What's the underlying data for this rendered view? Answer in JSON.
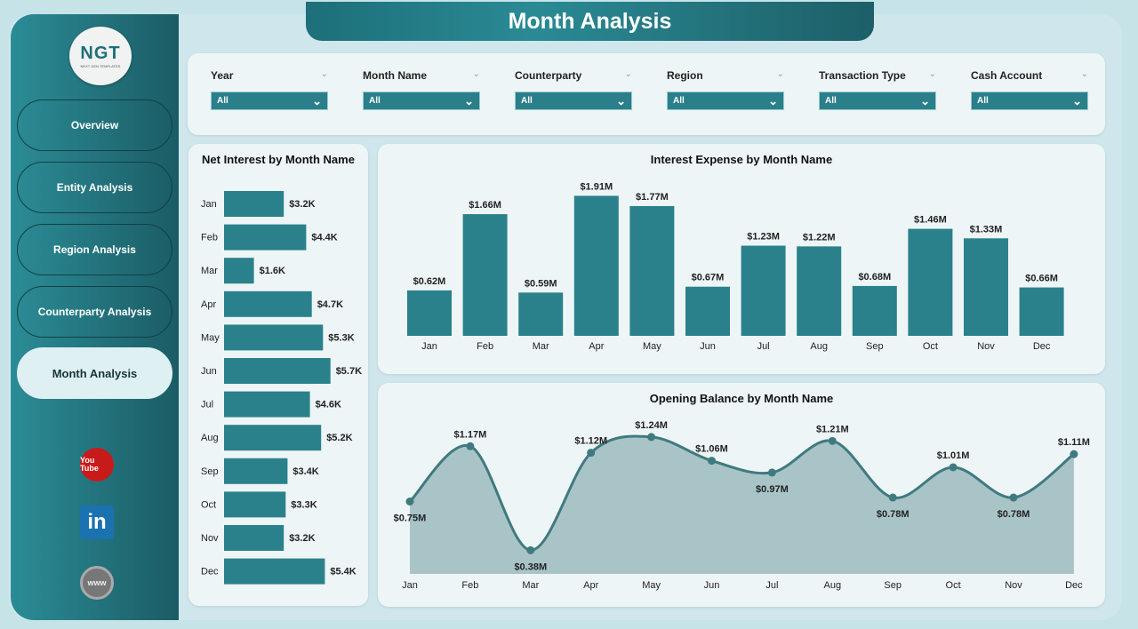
{
  "title": "Month Analysis",
  "logo": {
    "text": "NGT",
    "subtext": "NEXT GEN TEMPLATES"
  },
  "sidebar": {
    "items": [
      {
        "label": "Overview"
      },
      {
        "label": "Entity Analysis"
      },
      {
        "label": "Region Analysis"
      },
      {
        "label": "Counterparty Analysis"
      },
      {
        "label": "Month Analysis",
        "active": true
      }
    ],
    "social": [
      {
        "icon": "youtube-icon",
        "label": "You Tube"
      },
      {
        "icon": "linkedin-icon",
        "label": "in"
      },
      {
        "icon": "website-globe-icon",
        "label": "www"
      }
    ]
  },
  "filters": [
    {
      "label": "Year",
      "value": "All"
    },
    {
      "label": "Month Name",
      "value": "All"
    },
    {
      "label": "Counterparty",
      "value": "All"
    },
    {
      "label": "Region",
      "value": "All"
    },
    {
      "label": "Transaction Type",
      "value": "All"
    },
    {
      "label": "Cash Account",
      "value": "All"
    }
  ],
  "colors": {
    "accent": "#2a7f8a",
    "bar": "#2a818b",
    "line": "#3f7a80",
    "area": "#a9c4c7"
  },
  "chart_data": [
    {
      "type": "bar",
      "orientation": "horizontal",
      "title": "Net Interest by Month Name",
      "categories": [
        "Jan",
        "Feb",
        "Mar",
        "Apr",
        "May",
        "Jun",
        "Jul",
        "Aug",
        "Sep",
        "Oct",
        "Nov",
        "Dec"
      ],
      "values": [
        3.2,
        4.4,
        1.6,
        4.7,
        5.3,
        5.7,
        4.6,
        5.2,
        3.4,
        3.3,
        3.2,
        5.4
      ],
      "unit": "K",
      "labels": [
        "$3.2K",
        "$4.4K",
        "$1.6K",
        "$4.7K",
        "$5.3K",
        "$5.7K",
        "$4.6K",
        "$5.2K",
        "$3.4K",
        "$3.3K",
        "$3.2K",
        "$5.4K"
      ]
    },
    {
      "type": "bar",
      "title": "Interest Expense by Month Name",
      "categories": [
        "Jan",
        "Feb",
        "Mar",
        "Apr",
        "May",
        "Jun",
        "Jul",
        "Aug",
        "Sep",
        "Oct",
        "Nov",
        "Dec"
      ],
      "values": [
        0.62,
        1.66,
        0.59,
        1.91,
        1.77,
        0.67,
        1.23,
        1.22,
        0.68,
        1.46,
        1.33,
        0.66
      ],
      "unit": "M",
      "labels": [
        "$0.62M",
        "$1.66M",
        "$0.59M",
        "$1.91M",
        "$1.77M",
        "$0.67M",
        "$1.23M",
        "$1.22M",
        "$0.68M",
        "$1.46M",
        "$1.33M",
        "$0.66M"
      ],
      "ylim": [
        0,
        2
      ]
    },
    {
      "type": "area",
      "title": "Opening Balance by Month Name",
      "categories": [
        "Jan",
        "Feb",
        "Mar",
        "Apr",
        "May",
        "Jun",
        "Jul",
        "Aug",
        "Sep",
        "Oct",
        "Nov",
        "Dec"
      ],
      "values": [
        0.75,
        1.17,
        0.38,
        1.12,
        1.24,
        1.06,
        0.97,
        1.21,
        0.78,
        1.01,
        0.78,
        1.11
      ],
      "unit": "M",
      "labels": [
        "$0.75M",
        "$1.17M",
        "$0.38M",
        "$1.12M",
        "$1.24M",
        "$1.06M",
        "$0.97M",
        "$1.21M",
        "$0.78M",
        "$1.01M",
        "$0.78M",
        "$1.11M"
      ],
      "ylim": [
        0.2,
        1.3
      ]
    }
  ]
}
